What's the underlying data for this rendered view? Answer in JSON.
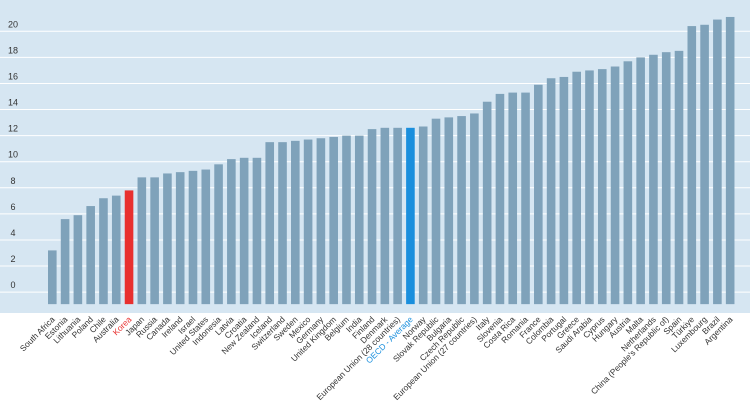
{
  "chart_data": {
    "type": "bar",
    "title": "",
    "xlabel": "",
    "ylabel": "",
    "ylim": [
      -1.6,
      22.4
    ],
    "yticks": [
      0,
      2,
      4,
      6,
      8,
      10,
      12,
      14,
      16,
      18,
      20
    ],
    "grid": true,
    "colors": {
      "plot_bg": "#d6e6f2",
      "grid": "#ffffff",
      "bar": "#7fa2ba",
      "highlight_korea": "#e8302f",
      "highlight_oecd": "#1a8fdd",
      "tick_text": "#333333",
      "label_text": "#333333"
    },
    "categories": [
      "South Africa",
      "Estonia",
      "Lithuania",
      "Poland",
      "Chile",
      "Australia",
      "Korea",
      "Japan",
      "Russia",
      "Canada",
      "Ireland",
      "Israel",
      "United States",
      "Indonesia",
      "Latvia",
      "Croatia",
      "New Zealand",
      "Iceland",
      "Switzerland",
      "Sweden",
      "Mexico",
      "Germany",
      "United Kingdom",
      "Belgium",
      "India",
      "Finland",
      "Denmark",
      "European Union (28 countries)",
      "OECD - Average",
      "Norway",
      "Slovak Republic",
      "Bulgaria",
      "Czech Republic",
      "European Union (27 countries)",
      "Italy",
      "Slovenia",
      "Costa Rica",
      "Romania",
      "France",
      "Colombia",
      "Portugal",
      "Greece",
      "Saudi Arabia",
      "Cyprus",
      "Hungary",
      "Austria",
      "Malta",
      "Netherlands",
      "China (People's Republic of)",
      "Spain",
      "Türkiye",
      "Luxembourg",
      "Brazil",
      "Argentina"
    ],
    "values": [
      3.2,
      5.6,
      5.9,
      6.6,
      7.2,
      7.4,
      7.8,
      8.8,
      8.8,
      9.1,
      9.2,
      9.3,
      9.4,
      9.8,
      10.2,
      10.3,
      10.3,
      11.5,
      11.5,
      11.6,
      11.7,
      11.8,
      11.9,
      12.0,
      12.0,
      12.5,
      12.6,
      12.6,
      12.6,
      12.7,
      13.3,
      13.4,
      13.5,
      13.7,
      14.6,
      15.2,
      15.3,
      15.3,
      15.9,
      16.4,
      16.5,
      16.9,
      17.0,
      17.1,
      17.3,
      17.7,
      18.0,
      18.2,
      18.4,
      18.5,
      20.4,
      20.5,
      20.9,
      21.1
    ],
    "highlight": {
      "Korea": "highlight_korea",
      "OECD - Average": "highlight_oecd"
    }
  }
}
